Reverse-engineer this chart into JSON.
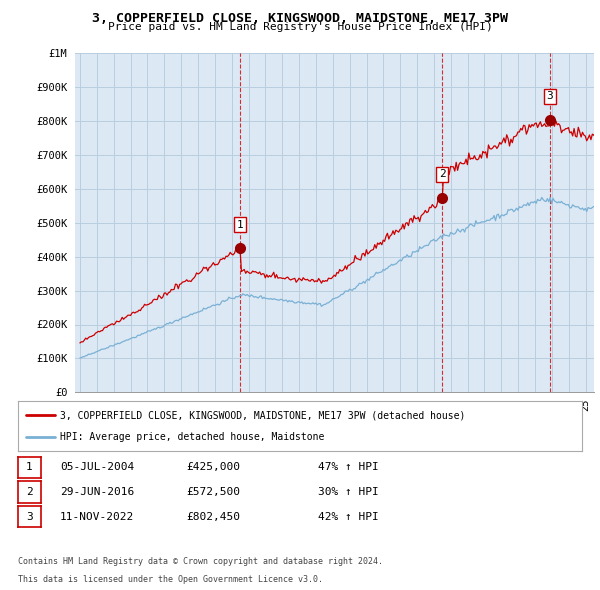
{
  "title": "3, COPPERFIELD CLOSE, KINGSWOOD, MAIDSTONE, ME17 3PW",
  "subtitle": "Price paid vs. HM Land Registry's House Price Index (HPI)",
  "sale_dates_float": [
    2004.51,
    2016.5,
    2022.87
  ],
  "sale_prices": [
    425000,
    572500,
    802450
  ],
  "sale_labels": [
    "1",
    "2",
    "3"
  ],
  "sale_info": [
    {
      "label": "1",
      "date": "05-JUL-2004",
      "price": "£425,000",
      "change": "47% ↑ HPI"
    },
    {
      "label": "2",
      "date": "29-JUN-2016",
      "price": "£572,500",
      "change": "30% ↑ HPI"
    },
    {
      "label": "3",
      "date": "11-NOV-2022",
      "price": "£802,450",
      "change": "42% ↑ HPI"
    }
  ],
  "legend_line1": "3, COPPERFIELD CLOSE, KINGSWOOD, MAIDSTONE, ME17 3PW (detached house)",
  "legend_line2": "HPI: Average price, detached house, Maidstone",
  "footer1": "Contains HM Land Registry data © Crown copyright and database right 2024.",
  "footer2": "This data is licensed under the Open Government Licence v3.0.",
  "price_line_color": "#cc0000",
  "hpi_line_color": "#7ab0d4",
  "plot_bg_color": "#dce9f5",
  "ylim": [
    0,
    1000000
  ],
  "yticks": [
    0,
    100000,
    200000,
    300000,
    400000,
    500000,
    600000,
    700000,
    800000,
    900000,
    1000000
  ],
  "ytick_labels": [
    "£0",
    "£100K",
    "£200K",
    "£300K",
    "£400K",
    "£500K",
    "£600K",
    "£700K",
    "£800K",
    "£900K",
    "£1M"
  ],
  "background_color": "#ffffff",
  "grid_color": "#b8cfe0",
  "sale_marker_color": "#990000",
  "vline_color": "#cc0000",
  "xlim_start": 1994.7,
  "xlim_end": 2025.5
}
